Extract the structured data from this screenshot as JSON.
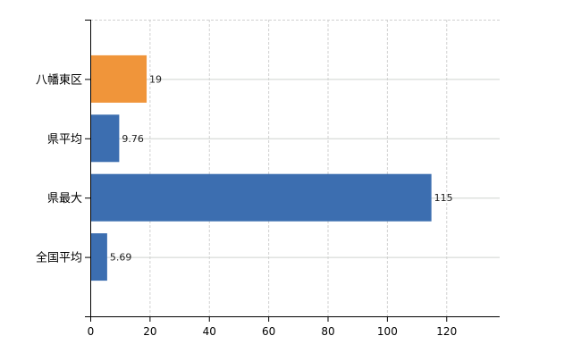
{
  "chart_data": {
    "type": "bar",
    "orientation": "horizontal",
    "categories": [
      "八幡東区",
      "県平均",
      "県最大",
      "全国平均"
    ],
    "values": [
      19,
      9.76,
      115,
      5.69
    ],
    "data_labels": [
      "19",
      "9.76",
      "115",
      "5.69"
    ],
    "bar_colors": [
      "#f0953a",
      "#3c6eb0",
      "#3c6eb0",
      "#3c6eb0"
    ],
    "xlim": [
      0,
      138
    ],
    "xticks": [
      0,
      20,
      40,
      60,
      80,
      100,
      120
    ],
    "grid": true,
    "title": "",
    "xlabel": "",
    "ylabel": ""
  }
}
